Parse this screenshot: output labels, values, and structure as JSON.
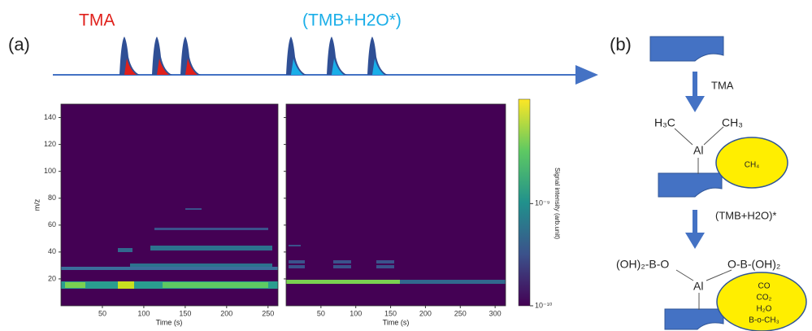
{
  "panel_a": {
    "label": "(a)",
    "precursor_1": "TMA",
    "precursor_2": "(TMB+H2O*)",
    "heatmap_1": {
      "ylabel": "m/z",
      "xlabel": "Time (s)",
      "xlim": [
        0,
        262
      ],
      "xticks": [
        50,
        100,
        150,
        200,
        250
      ],
      "ylim": [
        0,
        150
      ],
      "yticks": [
        20,
        40,
        60,
        80,
        100,
        120,
        140
      ]
    },
    "heatmap_2": {
      "xlabel": "Time (s)",
      "xlim": [
        0,
        315
      ],
      "xticks": [
        50,
        100,
        150,
        200,
        250,
        300
      ]
    },
    "colorbar": {
      "label": "Signal intensity (arb.unit)",
      "scale": "log",
      "lim": [
        1e-10,
        1.05e-08
      ],
      "ticks": [
        {
          "value": 1e-10,
          "label": "10⁻¹⁰"
        },
        {
          "value": 1e-09,
          "label": "10⁻⁹"
        }
      ]
    }
  },
  "panel_b": {
    "label": "(b)",
    "step_1": "TMA",
    "step_2": "(TMB+H2O)*",
    "intermediate": {
      "left": "H₃C",
      "right": "CH₃",
      "center": "Al",
      "byproducts": [
        "CH₄"
      ]
    },
    "final": {
      "left": "(OH)₂-B-O",
      "right": "O-B-(OH)₂",
      "center": "Al",
      "byproducts": [
        "CO",
        "CO₂",
        "H₂O",
        "B-o-CH₃"
      ]
    }
  }
}
